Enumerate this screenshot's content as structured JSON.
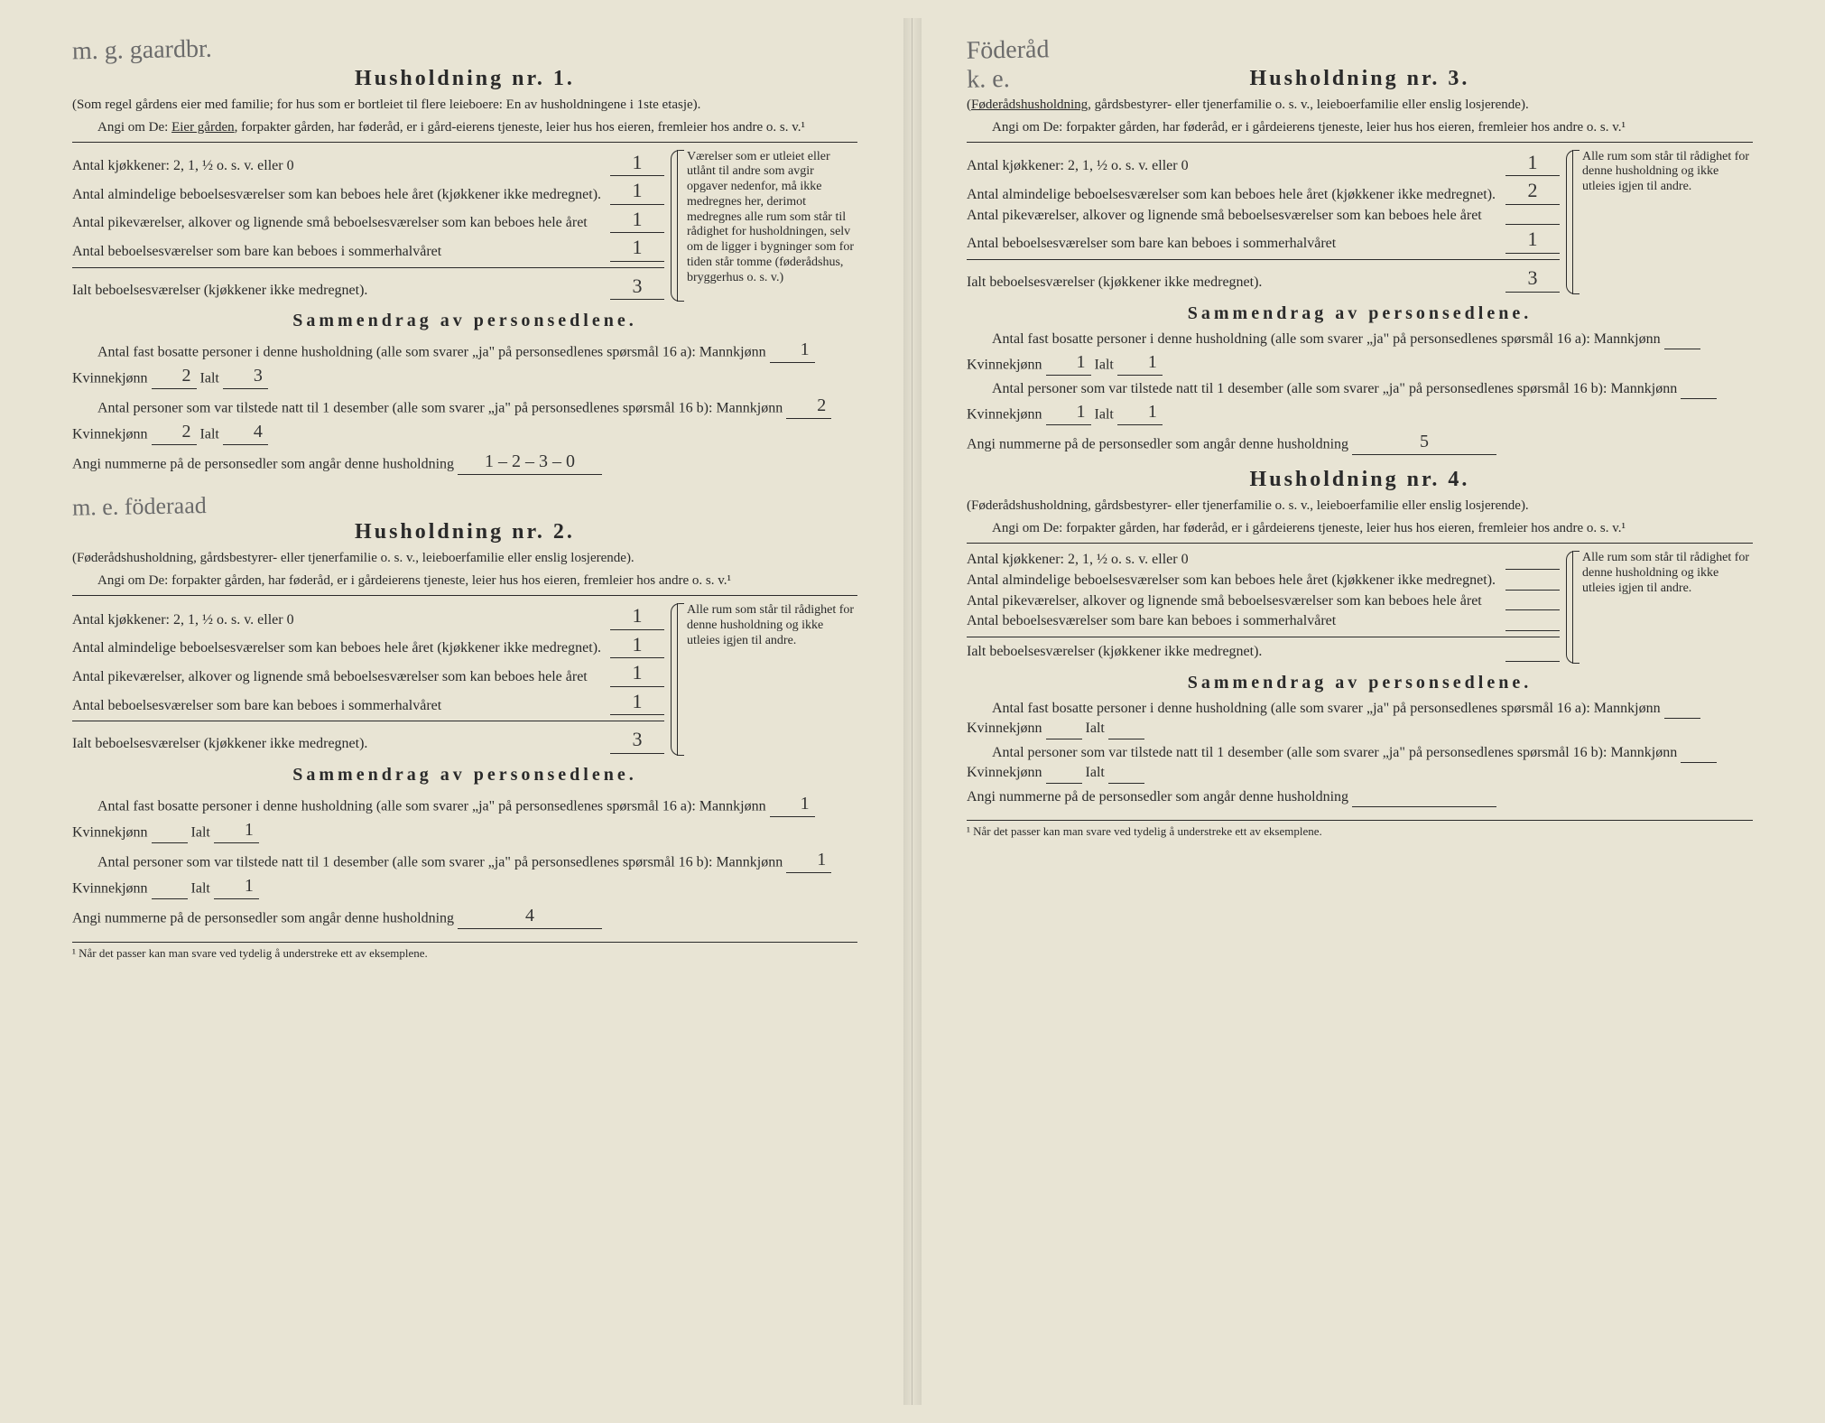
{
  "colors": {
    "paper": "#e8e4d4",
    "ink": "#2a2a2a",
    "pencil": "#6b6b6b"
  },
  "leftPage": {
    "handwrittenTop": "m. g. gaardbr.",
    "handwrittenMid": "m. e. föderaad",
    "hh1": {
      "title": "Husholdning nr. 1.",
      "subtitle1": "(Som regel gårdens eier med familie; for hus som er bortleiet til flere leieboere: En av husholdningene i 1ste etasje).",
      "subtitle2a": "Angi om De: ",
      "subtitle2b": "Eier gården",
      "subtitle2c": ", forpakter gården, har føderåd, er i gård-eierens tjeneste, leier hus hos eieren, fremleier hos andre o. s. v.¹",
      "rooms": {
        "r1": {
          "label": "Antal kjøkkener: 2, 1, ½ o. s. v. eller 0",
          "val": "1"
        },
        "r2": {
          "label": "Antal almindelige beboelsesværelser som kan beboes hele året (kjøkkener ikke medregnet).",
          "val": "1"
        },
        "r3": {
          "label": "Antal pikeværelser, alkover og lignende små beboelsesværelser som kan beboes hele året",
          "val": "1"
        },
        "r4": {
          "label": "Antal beboelsesværelser som bare kan beboes i sommerhalvåret",
          "val": "1"
        },
        "total": {
          "label": "Ialt beboelsesværelser (kjøkkener ikke medregnet).",
          "val": "3"
        }
      },
      "roomsNote": "Værelser som er utleiet eller utlånt til andre som avgir opgaver nedenfor, må ikke medregnes her, derimot medregnes alle rum som står til rådighet for husholdningen, selv om de ligger i bygninger som for tiden står tomme (føderådshus, bryggerhus o. s. v.)",
      "summaryTitle": "Sammendrag av personsedlene.",
      "sumLine1": "Antal fast bosatte personer i denne husholdning (alle som svarer „ja\" på personsedlenes spørsmål 16 a): Mannkjønn",
      "sumLine1_mann": "1",
      "sumLine1_kvinneLabel": "Kvinnekjønn",
      "sumLine1_kvinne": "2",
      "sumLine1_ialtLabel": "Ialt",
      "sumLine1_ialt": "3",
      "sumLine2": "Antal personer som var tilstede natt til 1 desember (alle som svarer „ja\" på personsedlenes spørsmål 16 b): Mannkjønn",
      "sumLine2_mann": "2",
      "sumLine2_kvinne": "2",
      "sumLine2_ialt": "4",
      "nummerneLabel": "Angi nummerne på de personsedler som angår denne husholdning",
      "nummerne": "1 – 2 – 3 – 0"
    },
    "hh2": {
      "title": "Husholdning nr. 2.",
      "subtitle1": "(Føderådshusholdning, gårdsbestyrer- eller tjenerfamilie o. s. v., leieboerfamilie eller enslig losjerende).",
      "subtitle2": "Angi om De: forpakter gården, har føderåd, er i gårdeierens tjeneste, leier hus hos eieren, fremleier hos andre o. s. v.¹",
      "rooms": {
        "r1": {
          "label": "Antal kjøkkener: 2, 1, ½ o. s. v. eller 0",
          "val": "1"
        },
        "r2": {
          "label": "Antal almindelige beboelsesværelser som kan beboes hele året (kjøkkener ikke medregnet).",
          "val": "1"
        },
        "r3": {
          "label": "Antal pikeværelser, alkover og lignende små beboelsesværelser som kan beboes hele året",
          "val": "1"
        },
        "r4": {
          "label": "Antal beboelsesværelser som bare kan beboes i sommerhalvåret",
          "val": "1"
        },
        "total": {
          "label": "Ialt beboelsesværelser (kjøkkener ikke medregnet).",
          "val": "3"
        }
      },
      "roomsNote": "Alle rum som står til rådighet for denne husholdning og ikke utleies igjen til andre.",
      "summaryTitle": "Sammendrag av personsedlene.",
      "sumLine1_mann": "1",
      "sumLine1_kvinne": "",
      "sumLine1_ialt": "1",
      "sumLine2_mann": "1",
      "sumLine2_kvinne": "",
      "sumLine2_ialt": "1",
      "nummerne": "4"
    },
    "footnote": "¹ Når det passer kan man svare ved tydelig å understreke ett av eksemplene."
  },
  "rightPage": {
    "handwrittenTop": "Föderåd",
    "handwrittenTop2": "k. e.",
    "hh3": {
      "title": "Husholdning nr. 3.",
      "subtitle1a": "(",
      "subtitle1b": "Føderådshusholdning",
      "subtitle1c": ", gårdsbestyrer- eller tjenerfamilie o. s. v., leieboerfamilie eller enslig losjerende).",
      "subtitle2": "Angi om De: forpakter gården, har føderåd, er i gårdeierens tjeneste, leier hus hos eieren, fremleier hos andre o. s. v.¹",
      "rooms": {
        "r1": {
          "label": "Antal kjøkkener: 2, 1, ½ o. s. v. eller 0",
          "val": "1"
        },
        "r2": {
          "label": "Antal almindelige beboelsesværelser som kan beboes hele året (kjøkkener ikke medregnet).",
          "val": "2"
        },
        "r3": {
          "label": "Antal pikeværelser, alkover og lignende små beboelsesværelser som kan beboes hele året",
          "val": ""
        },
        "r4": {
          "label": "Antal beboelsesværelser som bare kan beboes i sommerhalvåret",
          "val": "1"
        },
        "total": {
          "label": "Ialt beboelsesværelser (kjøkkener ikke medregnet).",
          "val": "3"
        }
      },
      "roomsNote": "Alle rum som står til rådighet for denne husholdning og ikke utleies igjen til andre.",
      "summaryTitle": "Sammendrag av personsedlene.",
      "sumLine1_mann": "",
      "sumLine1_kvinne": "1",
      "sumLine1_ialt": "1",
      "sumLine2_mann": "",
      "sumLine2_kvinne": "1",
      "sumLine2_ialt": "1",
      "nummerne": "5"
    },
    "hh4": {
      "title": "Husholdning nr. 4.",
      "subtitle1": "(Føderådshusholdning, gårdsbestyrer- eller tjenerfamilie o. s. v., leieboerfamilie eller enslig losjerende).",
      "subtitle2": "Angi om De: forpakter gården, har føderåd, er i gårdeierens tjeneste, leier hus hos eieren, fremleier hos andre o. s. v.¹",
      "rooms": {
        "r1": {
          "label": "Antal kjøkkener: 2, 1, ½ o. s. v. eller 0",
          "val": ""
        },
        "r2": {
          "label": "Antal almindelige beboelsesværelser som kan beboes hele året (kjøkkener ikke medregnet).",
          "val": ""
        },
        "r3": {
          "label": "Antal pikeværelser, alkover og lignende små beboelsesværelser som kan beboes hele året",
          "val": ""
        },
        "r4": {
          "label": "Antal beboelsesværelser som bare kan beboes i sommerhalvåret",
          "val": ""
        },
        "total": {
          "label": "Ialt beboelsesværelser (kjøkkener ikke medregnet).",
          "val": ""
        }
      },
      "roomsNote": "Alle rum som står til rådighet for denne husholdning og ikke utleies igjen til andre.",
      "summaryTitle": "Sammendrag av personsedlene.",
      "sumLine1_mann": "",
      "sumLine1_kvinne": "",
      "sumLine1_ialt": "",
      "sumLine2_mann": "",
      "sumLine2_kvinne": "",
      "sumLine2_ialt": "",
      "nummerne": ""
    },
    "footnote": "¹ Når det passer kan man svare ved tydelig å understreke ett av eksemplene."
  },
  "labels": {
    "kvinne": "Kvinnekjønn",
    "ialt": "Ialt",
    "sumLine1Prefix": "Antal fast bosatte personer i denne husholdning (alle som svarer „ja\" på personsedlenes spørsmål 16 a): Mannkjønn",
    "sumLine2Prefix": "Antal personer som var tilstede natt til 1 desember (alle som svarer „ja\" på personsedlenes spørsmål 16 b): Mannkjønn",
    "nummernePrefix": "Angi nummerne på de personsedler som angår denne husholdning"
  }
}
